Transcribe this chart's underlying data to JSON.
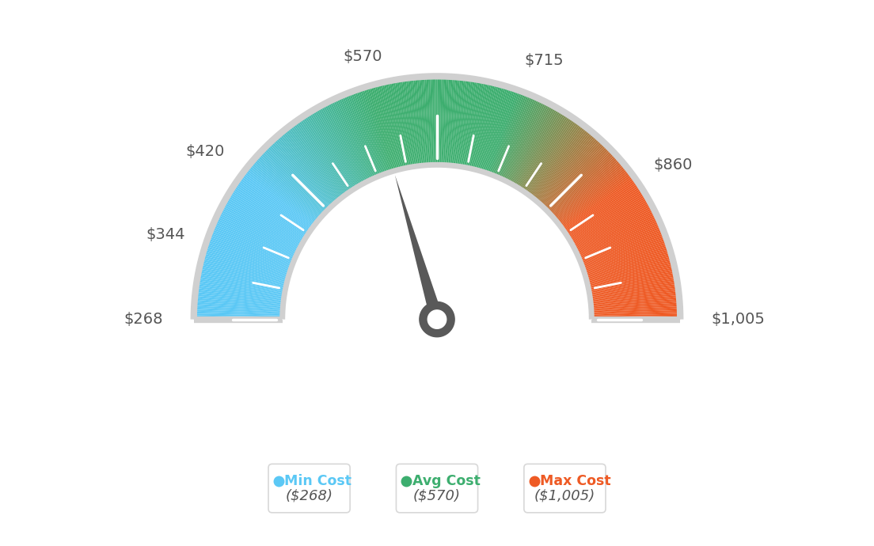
{
  "min_val": 268,
  "max_val": 1005,
  "avg_val": 570,
  "needle_val": 570,
  "min_cost_label": "Min Cost",
  "avg_cost_label": "Avg Cost",
  "max_cost_label": "Max Cost",
  "min_cost_val": "($268)",
  "avg_cost_val": "($570)",
  "max_cost_val": "($1,005)",
  "min_color": "#5BC8F5",
  "avg_color": "#3DAE6F",
  "max_color": "#EE5A24",
  "text_color": "#555555",
  "bg_color": "#ffffff",
  "label_values": [
    268,
    344,
    420,
    570,
    715,
    860,
    1005
  ],
  "color_stops_val": [
    268,
    420,
    570,
    715,
    860,
    1005
  ],
  "color_stops_col": [
    "#5BC8F5",
    "#5BC8F5",
    "#3DAE6F",
    "#3DAE6F",
    "#EE5A24",
    "#EE5A24"
  ],
  "needle_color": "#595959",
  "border_color": "#d0d0d0",
  "inner_bg_color": "#f0f0f0"
}
